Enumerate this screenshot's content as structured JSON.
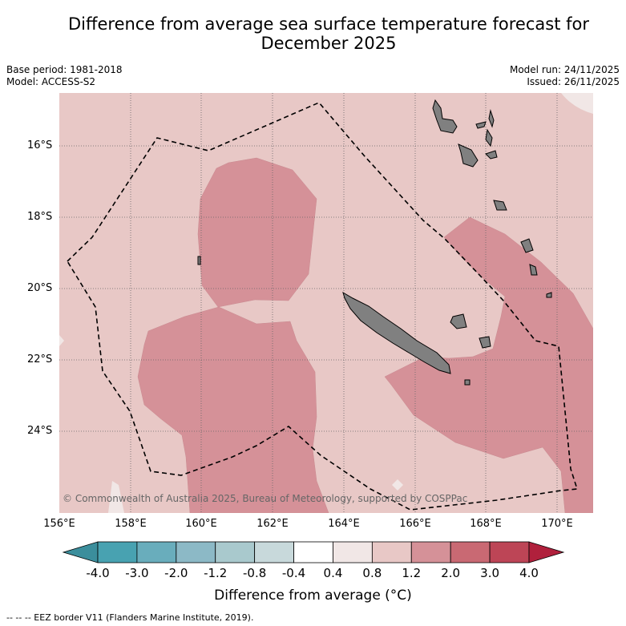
{
  "title": "Difference from average sea surface temperature forecast for December 2025",
  "title_line1": "Difference from average sea surface temperature forecast for",
  "title_line2": "December 2025",
  "meta": {
    "base_period": "Base period: 1981-2018",
    "model": "Model: ACCESS-S2",
    "model_run": "Model run: 24/11/2025",
    "issued": "Issued: 26/11/2025"
  },
  "map": {
    "lat_labels": [
      "16°S",
      "18°S",
      "20°S",
      "22°S",
      "24°S"
    ],
    "lon_labels": [
      "156°E",
      "158°E",
      "160°E",
      "162°E",
      "164°E",
      "166°E",
      "168°E",
      "170°E"
    ],
    "copyright": "© Commonwealth of Australia 2025, Bureau of Meteorology, supported by COSPPac",
    "colors": {
      "ocean_base": "#e8c8c6",
      "anomaly_1_2_to_2_0": "#d59198",
      "land": "#808080",
      "near_zero": "#f1e7e6"
    }
  },
  "colorbar": {
    "ticks": [
      "-4.0",
      "-3.0",
      "-2.0",
      "-1.2",
      "-0.8",
      "-0.4",
      "0.4",
      "0.8",
      "1.2",
      "2.0",
      "3.0",
      "4.0"
    ],
    "colors": [
      "#3b8e9c",
      "#48a2b1",
      "#69adbc",
      "#8cb9c6",
      "#a9c9cd",
      "#c8d9db",
      "#ffffff",
      "#f1e7e6",
      "#e8c8c6",
      "#d59198",
      "#c96973",
      "#bd4556",
      "#b0203c"
    ],
    "label": "Difference from average (°C)"
  },
  "footer": "--  --  -- EEZ border V11 (Flanders Marine Institute, 2019)."
}
